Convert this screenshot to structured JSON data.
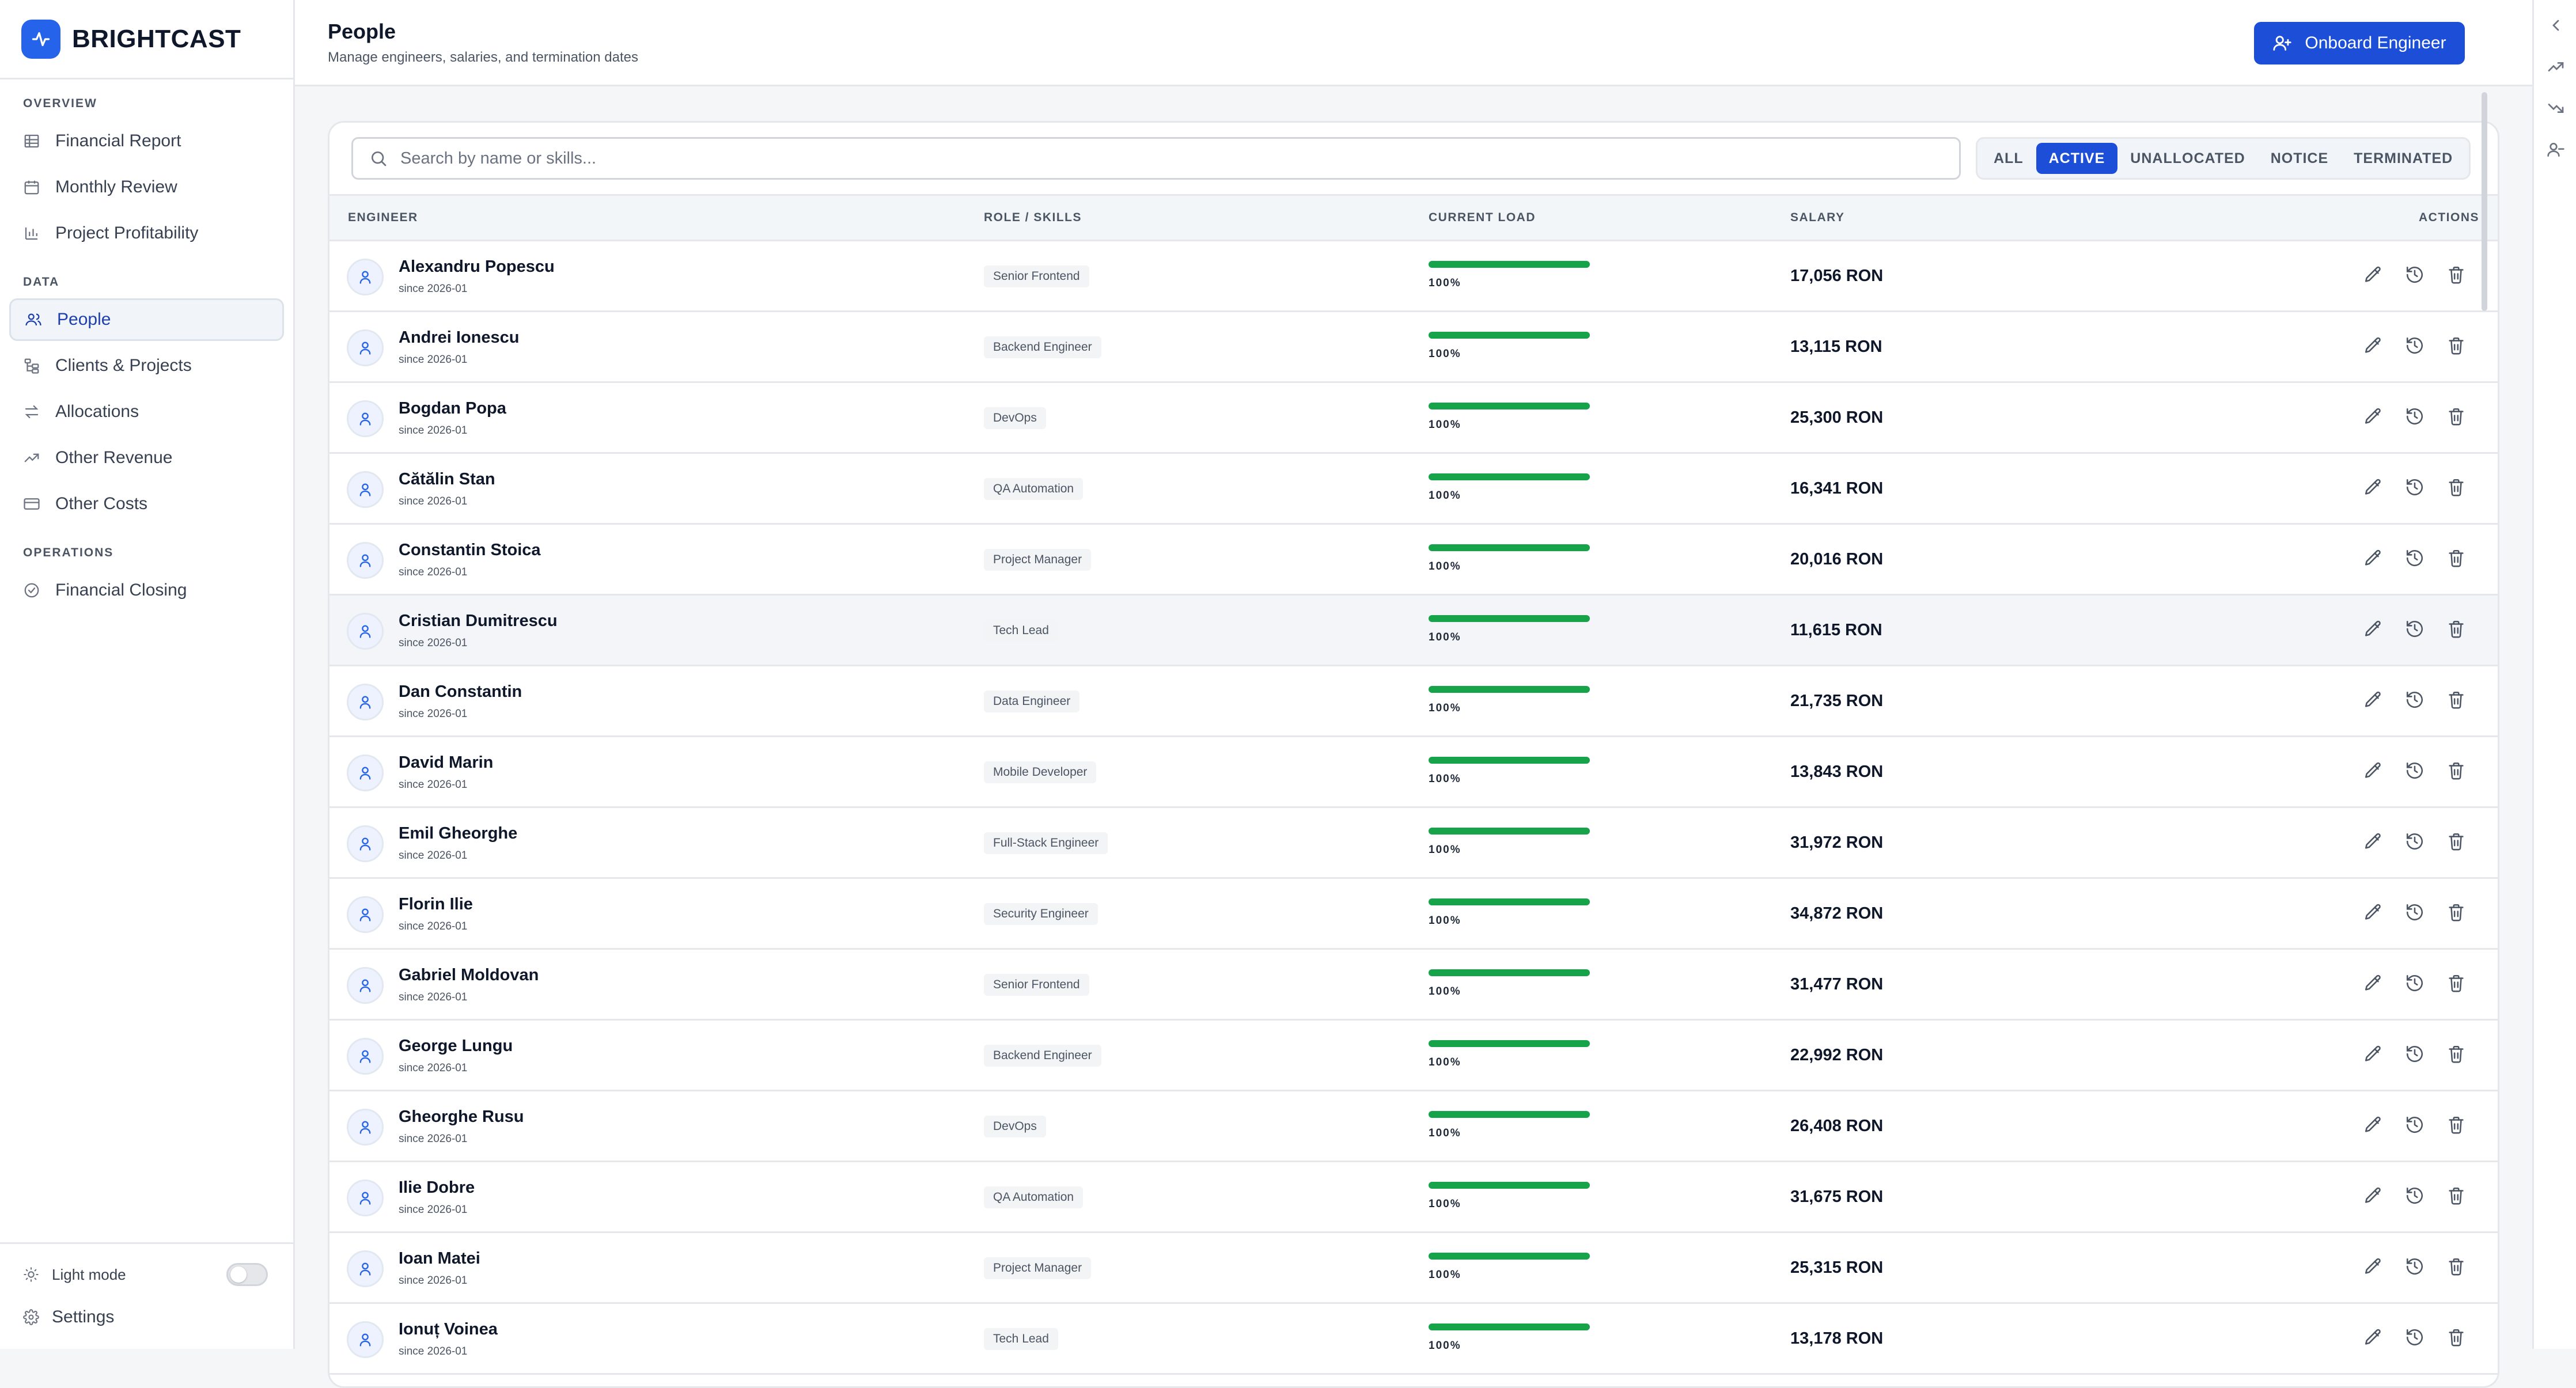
{
  "brand": {
    "name": "BRIGHTCAST",
    "logo_icon": "activity-icon",
    "accent": "#2563eb"
  },
  "sidebar": {
    "sections": [
      {
        "heading": "OVERVIEW",
        "items": [
          {
            "label": "Financial Report",
            "icon": "table-icon"
          },
          {
            "label": "Monthly Review",
            "icon": "calendar-icon"
          },
          {
            "label": "Project Profitability",
            "icon": "bar-chart-icon"
          }
        ]
      },
      {
        "heading": "DATA",
        "items": [
          {
            "label": "People",
            "icon": "users-icon",
            "active": true
          },
          {
            "label": "Clients & Projects",
            "icon": "folder-tree-icon"
          },
          {
            "label": "Allocations",
            "icon": "arrows-swap-icon"
          },
          {
            "label": "Other Revenue",
            "icon": "trending-up-icon"
          },
          {
            "label": "Other Costs",
            "icon": "credit-card-icon"
          }
        ]
      },
      {
        "heading": "OPERATIONS",
        "items": [
          {
            "label": "Financial Closing",
            "icon": "check-circle-icon"
          }
        ]
      }
    ],
    "footer": {
      "theme_label": "Light mode",
      "theme_on": false,
      "settings_label": "Settings"
    }
  },
  "header": {
    "title": "People",
    "subtitle": "Manage engineers, salaries, and termination dates",
    "primary_action": "Onboard Engineer"
  },
  "search": {
    "placeholder": "Search by name or skills...",
    "value": ""
  },
  "filters": {
    "options": [
      "ALL",
      "ACTIVE",
      "UNALLOCATED",
      "NOTICE",
      "TERMINATED"
    ],
    "selected": "ACTIVE"
  },
  "table": {
    "columns": {
      "engineer": "ENGINEER",
      "role": "ROLE / SKILLS",
      "load": "CURRENT LOAD",
      "salary": "SALARY",
      "actions": "ACTIONS"
    },
    "rows": [
      {
        "name": "Alexandru Popescu",
        "since": "since 2026-01",
        "role": "Senior Frontend",
        "load_label": "100%",
        "load": 100,
        "salary": "17,056 RON"
      },
      {
        "name": "Andrei Ionescu",
        "since": "since 2026-01",
        "role": "Backend Engineer",
        "load_label": "100%",
        "load": 100,
        "salary": "13,115 RON"
      },
      {
        "name": "Bogdan Popa",
        "since": "since 2026-01",
        "role": "DevOps",
        "load_label": "100%",
        "load": 100,
        "salary": "25,300 RON"
      },
      {
        "name": "Cătălin Stan",
        "since": "since 2026-01",
        "role": "QA Automation",
        "load_label": "100%",
        "load": 100,
        "salary": "16,341 RON"
      },
      {
        "name": "Constantin Stoica",
        "since": "since 2026-01",
        "role": "Project Manager",
        "load_label": "100%",
        "load": 100,
        "salary": "20,016 RON"
      },
      {
        "name": "Cristian Dumitrescu",
        "since": "since 2026-01",
        "role": "Tech Lead",
        "load_label": "100%",
        "load": 100,
        "salary": "11,615 RON",
        "hover": true
      },
      {
        "name": "Dan Constantin",
        "since": "since 2026-01",
        "role": "Data Engineer",
        "load_label": "100%",
        "load": 100,
        "salary": "21,735 RON"
      },
      {
        "name": "David Marin",
        "since": "since 2026-01",
        "role": "Mobile Developer",
        "load_label": "100%",
        "load": 100,
        "salary": "13,843 RON"
      },
      {
        "name": "Emil Gheorghe",
        "since": "since 2026-01",
        "role": "Full-Stack Engineer",
        "load_label": "100%",
        "load": 100,
        "salary": "31,972 RON"
      },
      {
        "name": "Florin Ilie",
        "since": "since 2026-01",
        "role": "Security Engineer",
        "load_label": "100%",
        "load": 100,
        "salary": "34,872 RON"
      },
      {
        "name": "Gabriel Moldovan",
        "since": "since 2026-01",
        "role": "Senior Frontend",
        "load_label": "100%",
        "load": 100,
        "salary": "31,477 RON"
      },
      {
        "name": "George Lungu",
        "since": "since 2026-01",
        "role": "Backend Engineer",
        "load_label": "100%",
        "load": 100,
        "salary": "22,992 RON"
      },
      {
        "name": "Gheorghe Rusu",
        "since": "since 2026-01",
        "role": "DevOps",
        "load_label": "100%",
        "load": 100,
        "salary": "26,408 RON"
      },
      {
        "name": "Ilie Dobre",
        "since": "since 2026-01",
        "role": "QA Automation",
        "load_label": "100%",
        "load": 100,
        "salary": "31,675 RON"
      },
      {
        "name": "Ioan Matei",
        "since": "since 2026-01",
        "role": "Project Manager",
        "load_label": "100%",
        "load": 100,
        "salary": "25,315 RON"
      },
      {
        "name": "Ionuț Voinea",
        "since": "since 2026-01",
        "role": "Tech Lead",
        "load_label": "100%",
        "load": 100,
        "salary": "13,178 RON"
      }
    ],
    "row_actions": [
      "edit-icon",
      "history-icon",
      "trash-icon"
    ]
  },
  "right_rail": {
    "icons": [
      "chevron-left-icon",
      "trending-up-icon",
      "trending-down-icon",
      "user-minus-icon"
    ]
  },
  "colors": {
    "primary": "#1d4ed8",
    "load_fill": "#16a34a"
  }
}
